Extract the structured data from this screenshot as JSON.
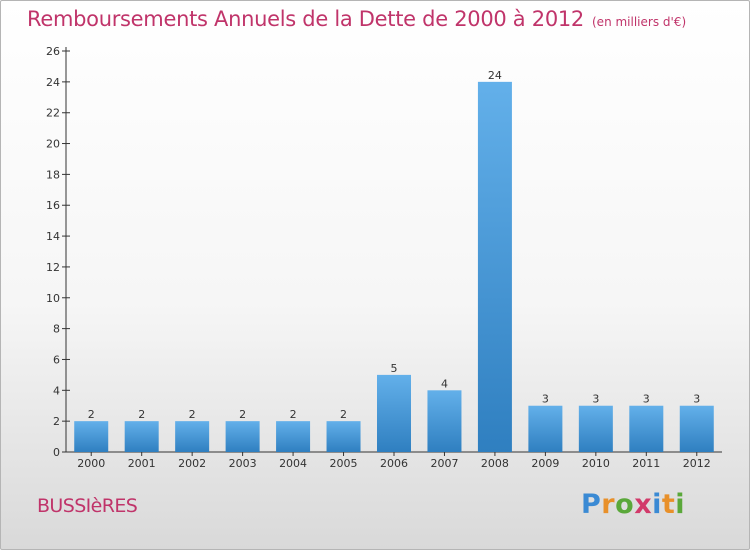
{
  "title": "Remboursements Annuels de la Dette de 2000 à 2012",
  "unit": "(en milliers d'€)",
  "commune": "BUSSIèRES",
  "logo": {
    "letters": [
      {
        "char": "P",
        "color": "#3a8ad4"
      },
      {
        "char": "r",
        "color": "#e8902a"
      },
      {
        "char": "o",
        "color": "#5aa83a"
      },
      {
        "char": "x",
        "color": "#d23a6a"
      },
      {
        "char": "i",
        "color": "#3a8ad4"
      },
      {
        "char": "t",
        "color": "#e8902a"
      },
      {
        "char": "i",
        "color": "#5aa83a"
      }
    ]
  },
  "colors": {
    "bar_top": "#63b0ea",
    "bar_bottom": "#2f7fc0",
    "title": "#c0346a"
  },
  "chart_data": {
    "type": "bar",
    "categories": [
      "2000",
      "2001",
      "2002",
      "2003",
      "2004",
      "2005",
      "2006",
      "2007",
      "2008",
      "2009",
      "2010",
      "2011",
      "2012"
    ],
    "values": [
      2,
      2,
      2,
      2,
      2,
      2,
      5,
      4,
      24,
      3,
      3,
      3,
      3
    ],
    "title": "Remboursements Annuels de la Dette de 2000 à 2012",
    "xlabel": "",
    "ylabel": "",
    "ylim": [
      0,
      26
    ],
    "yticks": [
      0,
      2,
      4,
      6,
      8,
      10,
      12,
      14,
      16,
      18,
      20,
      22,
      24,
      26
    ],
    "grid": false,
    "legend": "none"
  }
}
